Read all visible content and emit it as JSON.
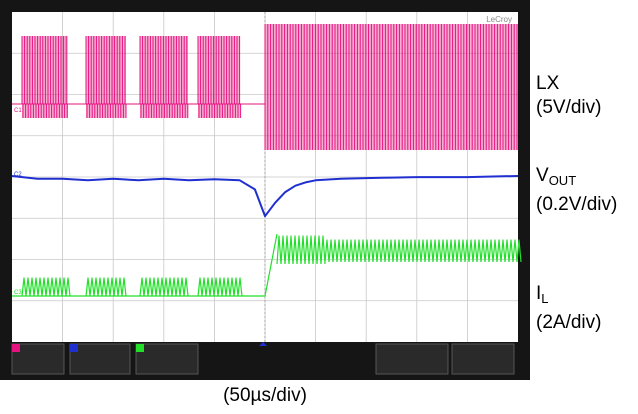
{
  "chart_data": {
    "type": "line",
    "title": "",
    "xlabel": "(50µs/div)",
    "divisions": {
      "x": 10,
      "y": 8
    },
    "grid": true,
    "brand": "LeCroy",
    "series": [
      {
        "name": "LX",
        "scale": "(5V/div)",
        "color": "#e5137f",
        "description": "switching node, burst mode pulses before load step, continuous switching after"
      },
      {
        "name": "VOUT",
        "name_base": "V",
        "name_sub": "OUT",
        "scale": "(0.2V/div)",
        "color": "#1f2fd0",
        "x_div": [
          0,
          0.5,
          1,
          1.5,
          2,
          2.5,
          3,
          3.5,
          4,
          4.5,
          4.8,
          5.0,
          5.2,
          5.4,
          5.6,
          5.8,
          6.0,
          6.5,
          7,
          7.5,
          8,
          8.5,
          9,
          9.5,
          10
        ],
        "y_div": [
          0,
          -0.05,
          -0.05,
          -0.08,
          -0.05,
          -0.08,
          -0.05,
          -0.08,
          -0.06,
          -0.08,
          -0.25,
          -0.75,
          -0.5,
          -0.3,
          -0.18,
          -0.12,
          -0.08,
          -0.05,
          -0.04,
          -0.03,
          -0.02,
          -0.02,
          -0.02,
          -0.01,
          0
        ]
      },
      {
        "name": "IL",
        "name_base": "I",
        "name_sub": "L",
        "scale": "(2A/div)",
        "color": "#22e02a",
        "description": "inductor current, low ripple burst pulses before step, rises to higher level after step"
      }
    ],
    "ch_marks": [
      "C1",
      "C2",
      "C3"
    ]
  }
}
